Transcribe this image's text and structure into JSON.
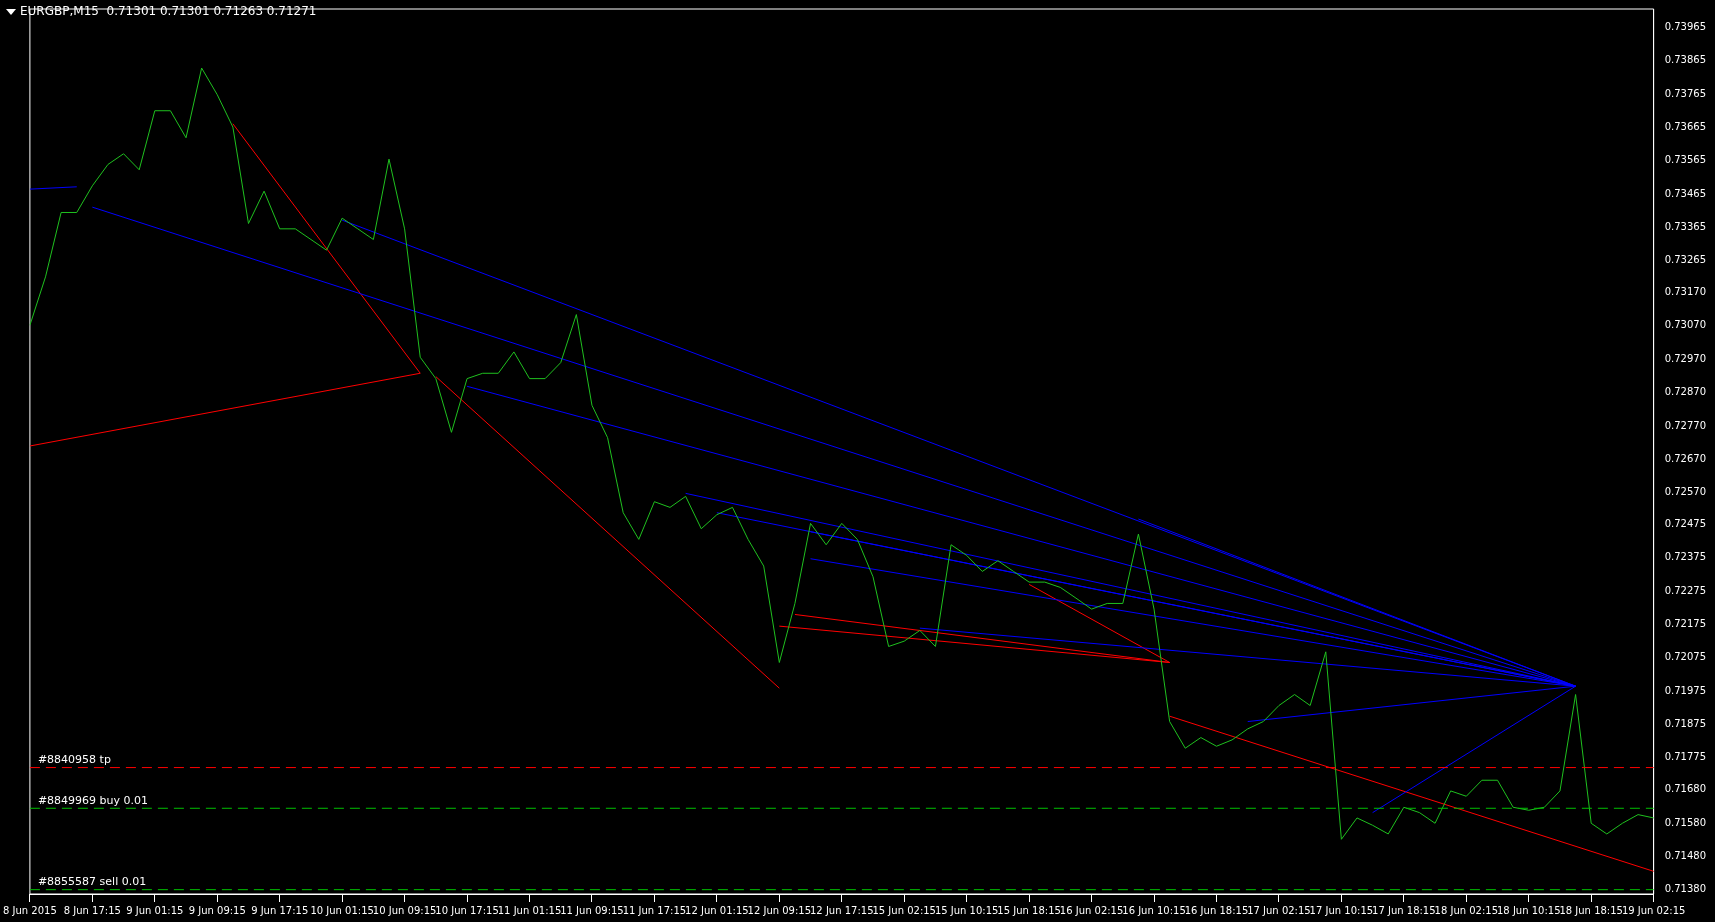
{
  "chart_data": {
    "type": "line",
    "title": "EURGBP,M15  0.71301 0.71301 0.71263 0.71271",
    "categories": [
      "8 Jun 2015",
      null,
      null,
      null,
      "8 Jun 17:15",
      null,
      null,
      null,
      "9 Jun 01:15",
      null,
      null,
      null,
      "9 Jun 09:15",
      null,
      null,
      null,
      "9 Jun 17:15",
      null,
      null,
      null,
      "10 Jun 01:15",
      null,
      null,
      null,
      "10 Jun 09:15",
      null,
      null,
      null,
      "10 Jun 17:15",
      null,
      null,
      null,
      "11 Jun 01:15",
      null,
      null,
      null,
      "11 Jun 09:15",
      null,
      null,
      null,
      "11 Jun 17:15",
      null,
      null,
      null,
      "12 Jun 01:15",
      null,
      null,
      null,
      "12 Jun 09:15",
      null,
      null,
      null,
      "12 Jun 17:15",
      null,
      null,
      null,
      "15 Jun 02:15",
      null,
      null,
      null,
      "15 Jun 10:15",
      null,
      null,
      null,
      "15 Jun 18:15",
      null,
      null,
      null,
      "16 Jun 02:15",
      null,
      null,
      null,
      "16 Jun 10:15",
      null,
      null,
      null,
      "16 Jun 18:15",
      null,
      null,
      null,
      "17 Jun 02:15",
      null,
      null,
      null,
      "17 Jun 10:15",
      null,
      null,
      null,
      "17 Jun 18:15",
      null,
      null,
      null,
      "18 Jun 02:15",
      null,
      null,
      null,
      "18 Jun 10:15",
      null,
      null,
      null,
      "18 Jun 18:15",
      null,
      null,
      null,
      "19 Jun 02:15"
    ],
    "ylim": [
      0.71367,
      0.7402
    ],
    "yticks": [
      0.73965,
      0.73865,
      0.73765,
      0.73665,
      0.73565,
      0.73465,
      0.73365,
      0.73265,
      {
        "value": 0.7317,
        "label": "0.73170"
      },
      {
        "value": 0.7307,
        "label": "0.73070"
      },
      {
        "value": 0.7297,
        "label": "0.72970"
      },
      {
        "value": 0.7287,
        "label": "0.72870"
      },
      {
        "value": 0.7277,
        "label": "0.72770"
      },
      {
        "value": 0.7267,
        "label": "0.72670"
      },
      {
        "value": 0.7257,
        "label": "0.72570"
      },
      0.72475,
      0.72375,
      0.72275,
      0.72175,
      0.72075,
      0.71975,
      0.71875,
      0.71775,
      {
        "value": 0.7168,
        "label": "0.71680"
      },
      {
        "value": 0.7158,
        "label": "0.71580"
      },
      {
        "value": 0.7148,
        "label": "0.71480"
      },
      {
        "value": 0.7138,
        "label": "0.71380"
      }
    ],
    "marker": "none",
    "line_style": "solid",
    "legend": false,
    "grid": false,
    "series": [
      {
        "color": "#1fc01f",
        "values": [
          0.73072,
          0.73217,
          0.7341,
          0.7341,
          0.7349,
          0.73554,
          0.73586,
          0.73538,
          0.73715,
          0.73715,
          0.73634,
          0.73843,
          0.73763,
          0.73666,
          0.73377,
          0.73474,
          0.73361,
          0.73361,
          0.73329,
          0.73297,
          0.73393,
          0.73361,
          0.73329,
          0.7357,
          0.73361,
          0.72976,
          0.72912,
          0.72751,
          0.72912,
          0.72928,
          0.72928,
          0.72992,
          0.72912,
          0.72912,
          0.7296,
          0.73104,
          0.72832,
          0.72735,
          0.7251,
          0.7243,
          0.72543,
          0.72526,
          0.72559,
          0.72462,
          0.72504,
          0.72526,
          0.7243,
          0.7235,
          0.72061,
          0.72238,
          0.72478,
          0.72414,
          0.72478,
          0.7243,
          0.72318,
          0.72109,
          0.72125,
          0.72157,
          0.72109,
          0.72414,
          0.72382,
          0.72334,
          0.72366,
          0.72334,
          0.72302,
          0.72302,
          0.72286,
          0.72254,
          0.72221,
          0.72238,
          0.72238,
          0.72446,
          0.72221,
          0.71884,
          0.71804,
          0.71836,
          0.7181,
          0.71829,
          0.71862,
          0.71884,
          0.71932,
          0.71965,
          0.71932,
          0.72093,
          0.71531,
          0.71595,
          0.71573,
          0.71547,
          0.71627,
          0.71611,
          0.71579,
          0.71676,
          0.7166,
          0.71708,
          0.71708,
          0.71627,
          0.71618,
          0.71627,
          0.71676,
          0.71965,
          0.71579,
          0.71547,
          0.71579,
          0.71605,
          0.71595
        ]
      },
      {
        "color": "#0000ff",
        "values": [
          0.7348,
          null,
          null,
          0.73487,
          null,
          null,
          null,
          null,
          null,
          null,
          null,
          null,
          null,
          null,
          null,
          null,
          null,
          null,
          null,
          null,
          null,
          null,
          null,
          null,
          null,
          null,
          null,
          null,
          null,
          null,
          null,
          null,
          null,
          null,
          null,
          null,
          null,
          null,
          null,
          null,
          null,
          null,
          null,
          null,
          null,
          null,
          null,
          null,
          null,
          null,
          null,
          null,
          null,
          null,
          null,
          null,
          null,
          null,
          null,
          null,
          null,
          null,
          null,
          null,
          null,
          null,
          null,
          null,
          null,
          null,
          null,
          null,
          null,
          null,
          null,
          null,
          null,
          null,
          null,
          null,
          null,
          null,
          null,
          null,
          null,
          null,
          null,
          null,
          null,
          null,
          null,
          null,
          null,
          null,
          null,
          null,
          null,
          null,
          null,
          null,
          null,
          null,
          null,
          null,
          null
        ]
      },
      {
        "color": "#0000ff",
        "values": [
          null,
          null,
          null,
          null,
          0.73426,
          null,
          null,
          null,
          null,
          null,
          null,
          null,
          null,
          null,
          null,
          null,
          null,
          null,
          null,
          null,
          null,
          null,
          null,
          null,
          null,
          null,
          null,
          null,
          null,
          null,
          null,
          null,
          null,
          null,
          null,
          null,
          null,
          null,
          null,
          null,
          null,
          null,
          null,
          null,
          null,
          null,
          null,
          null,
          null,
          null,
          null,
          null,
          null,
          null,
          null,
          null,
          null,
          null,
          null,
          null,
          null,
          null,
          null,
          null,
          null,
          null,
          null,
          null,
          null,
          null,
          null,
          null,
          null,
          null,
          null,
          null,
          null,
          null,
          null,
          null,
          null,
          null,
          null,
          null,
          null,
          null,
          null,
          null,
          null,
          null,
          null,
          null,
          null,
          null,
          null,
          null,
          null,
          null,
          null,
          0.7199,
          null,
          null,
          null,
          null,
          null
        ]
      },
      {
        "color": "#0000ff",
        "values": [
          null,
          null,
          null,
          null,
          null,
          null,
          null,
          null,
          null,
          null,
          null,
          null,
          null,
          null,
          null,
          null,
          null,
          null,
          null,
          null,
          0.73387,
          null,
          null,
          null,
          null,
          null,
          null,
          null,
          null,
          null,
          null,
          null,
          null,
          null,
          null,
          null,
          null,
          null,
          null,
          null,
          null,
          null,
          null,
          null,
          null,
          null,
          null,
          null,
          null,
          null,
          null,
          null,
          null,
          null,
          null,
          null,
          null,
          null,
          null,
          null,
          null,
          null,
          null,
          null,
          null,
          null,
          null,
          null,
          null,
          null,
          null,
          null,
          null,
          null,
          null,
          null,
          null,
          null,
          null,
          null,
          null,
          null,
          null,
          null,
          null,
          null,
          null,
          null,
          null,
          null,
          null,
          null,
          null,
          null,
          null,
          null,
          null,
          null,
          null,
          0.7199,
          null,
          null,
          null,
          null,
          null
        ]
      },
      {
        "color": "#0000ff",
        "values": [
          null,
          null,
          null,
          null,
          null,
          null,
          null,
          null,
          null,
          null,
          null,
          null,
          null,
          null,
          null,
          null,
          null,
          null,
          null,
          null,
          null,
          null,
          null,
          null,
          null,
          null,
          null,
          null,
          0.72889,
          null,
          null,
          null,
          null,
          null,
          null,
          null,
          null,
          null,
          null,
          null,
          null,
          null,
          null,
          null,
          null,
          null,
          null,
          null,
          null,
          null,
          null,
          null,
          null,
          null,
          null,
          null,
          null,
          null,
          null,
          null,
          null,
          null,
          null,
          null,
          null,
          null,
          null,
          null,
          null,
          null,
          null,
          null,
          null,
          null,
          null,
          null,
          null,
          null,
          null,
          null,
          null,
          null,
          null,
          null,
          null,
          null,
          null,
          null,
          null,
          null,
          null,
          null,
          null,
          null,
          null,
          null,
          null,
          null,
          null,
          0.7199,
          null,
          null,
          null,
          null,
          null
        ]
      },
      {
        "color": "#0000ff",
        "values": [
          null,
          null,
          null,
          null,
          null,
          null,
          null,
          null,
          null,
          null,
          null,
          null,
          null,
          null,
          null,
          null,
          null,
          null,
          null,
          null,
          null,
          null,
          null,
          null,
          null,
          null,
          null,
          null,
          null,
          null,
          null,
          null,
          null,
          null,
          null,
          null,
          null,
          null,
          null,
          null,
          null,
          null,
          0.72568,
          null,
          null,
          null,
          null,
          null,
          null,
          null,
          null,
          null,
          null,
          null,
          null,
          null,
          null,
          null,
          null,
          null,
          null,
          null,
          null,
          null,
          null,
          null,
          null,
          null,
          null,
          null,
          null,
          null,
          null,
          null,
          null,
          null,
          null,
          null,
          null,
          null,
          null,
          null,
          null,
          null,
          null,
          null,
          null,
          null,
          null,
          null,
          null,
          null,
          null,
          null,
          null,
          null,
          null,
          null,
          null,
          0.7199,
          null,
          null,
          null,
          null,
          null
        ]
      },
      {
        "color": "#0000ff",
        "values": [
          null,
          null,
          null,
          null,
          null,
          null,
          null,
          null,
          null,
          null,
          null,
          null,
          null,
          null,
          null,
          null,
          null,
          null,
          null,
          null,
          null,
          null,
          null,
          null,
          null,
          null,
          null,
          null,
          null,
          null,
          null,
          null,
          null,
          null,
          null,
          null,
          null,
          null,
          null,
          null,
          null,
          null,
          null,
          null,
          0.7251,
          null,
          null,
          null,
          null,
          null,
          null,
          null,
          null,
          null,
          null,
          null,
          null,
          null,
          null,
          null,
          null,
          null,
          null,
          null,
          null,
          null,
          null,
          null,
          null,
          null,
          null,
          null,
          null,
          null,
          null,
          null,
          null,
          null,
          null,
          null,
          null,
          null,
          null,
          null,
          null,
          null,
          null,
          null,
          null,
          null,
          null,
          null,
          null,
          null,
          null,
          null,
          null,
          null,
          null,
          0.7199,
          null,
          null,
          null,
          null,
          null
        ]
      },
      {
        "color": "#0000ff",
        "values": [
          null,
          null,
          null,
          null,
          null,
          null,
          null,
          null,
          null,
          null,
          null,
          null,
          null,
          null,
          null,
          null,
          null,
          null,
          null,
          null,
          null,
          null,
          null,
          null,
          null,
          null,
          null,
          null,
          null,
          null,
          null,
          null,
          null,
          null,
          null,
          null,
          null,
          null,
          null,
          null,
          null,
          null,
          null,
          null,
          null,
          null,
          null,
          null,
          null,
          null,
          0.72453,
          null,
          null,
          null,
          null,
          null,
          null,
          null,
          null,
          null,
          null,
          null,
          null,
          null,
          null,
          null,
          null,
          null,
          null,
          null,
          null,
          null,
          null,
          null,
          null,
          null,
          null,
          null,
          null,
          null,
          null,
          null,
          null,
          null,
          null,
          null,
          null,
          null,
          null,
          null,
          null,
          null,
          null,
          null,
          null,
          null,
          null,
          null,
          null,
          0.7199,
          null,
          null,
          null,
          null,
          null
        ]
      },
      {
        "color": "#0000ff",
        "values": [
          null,
          null,
          null,
          null,
          null,
          null,
          null,
          null,
          null,
          null,
          null,
          null,
          null,
          null,
          null,
          null,
          null,
          null,
          null,
          null,
          null,
          null,
          null,
          null,
          null,
          null,
          null,
          null,
          null,
          null,
          null,
          null,
          null,
          null,
          null,
          null,
          null,
          null,
          null,
          null,
          null,
          null,
          null,
          null,
          null,
          null,
          null,
          null,
          null,
          null,
          0.72372,
          null,
          null,
          null,
          null,
          null,
          null,
          null,
          null,
          null,
          null,
          null,
          null,
          null,
          null,
          null,
          null,
          null,
          null,
          null,
          null,
          null,
          null,
          null,
          null,
          null,
          null,
          null,
          null,
          null,
          null,
          null,
          null,
          null,
          null,
          null,
          null,
          null,
          null,
          null,
          null,
          null,
          null,
          null,
          null,
          null,
          null,
          null,
          null,
          0.7199,
          null,
          null,
          null,
          null,
          null
        ]
      },
      {
        "color": "#0000ff",
        "values": [
          null,
          null,
          null,
          null,
          null,
          null,
          null,
          null,
          null,
          null,
          null,
          null,
          null,
          null,
          null,
          null,
          null,
          null,
          null,
          null,
          null,
          null,
          null,
          null,
          null,
          null,
          null,
          null,
          null,
          null,
          null,
          null,
          null,
          null,
          null,
          null,
          null,
          null,
          null,
          null,
          null,
          null,
          null,
          null,
          null,
          null,
          null,
          null,
          null,
          null,
          null,
          null,
          null,
          null,
          null,
          null,
          null,
          0.72164,
          null,
          null,
          null,
          null,
          null,
          null,
          null,
          null,
          null,
          null,
          null,
          null,
          null,
          null,
          null,
          null,
          null,
          null,
          null,
          null,
          null,
          null,
          null,
          null,
          null,
          null,
          null,
          null,
          null,
          null,
          null,
          null,
          null,
          null,
          null,
          null,
          null,
          null,
          null,
          null,
          null,
          0.7199,
          null,
          null,
          null,
          null,
          null
        ]
      },
      {
        "color": "#0000ff",
        "values": [
          null,
          null,
          null,
          null,
          null,
          null,
          null,
          null,
          null,
          null,
          null,
          null,
          null,
          null,
          null,
          null,
          null,
          null,
          null,
          null,
          null,
          null,
          null,
          null,
          null,
          null,
          null,
          null,
          null,
          null,
          null,
          null,
          null,
          null,
          null,
          null,
          null,
          null,
          null,
          null,
          null,
          null,
          null,
          null,
          null,
          null,
          null,
          null,
          null,
          null,
          null,
          null,
          null,
          null,
          null,
          null,
          null,
          null,
          null,
          null,
          null,
          null,
          null,
          null,
          null,
          null,
          null,
          null,
          null,
          null,
          null,
          0.72491,
          null,
          null,
          null,
          null,
          null,
          null,
          null,
          null,
          null,
          null,
          null,
          null,
          null,
          null,
          null,
          null,
          null,
          null,
          null,
          null,
          null,
          null,
          null,
          null,
          null,
          null,
          null,
          0.7199,
          null,
          null,
          null,
          null,
          null
        ]
      },
      {
        "color": "#0000ff",
        "values": [
          null,
          null,
          null,
          null,
          null,
          null,
          null,
          null,
          null,
          null,
          null,
          null,
          null,
          null,
          null,
          null,
          null,
          null,
          null,
          null,
          null,
          null,
          null,
          null,
          null,
          null,
          null,
          null,
          null,
          null,
          null,
          null,
          null,
          null,
          null,
          null,
          null,
          null,
          null,
          null,
          null,
          null,
          null,
          null,
          null,
          null,
          null,
          null,
          null,
          null,
          null,
          null,
          null,
          null,
          null,
          null,
          null,
          null,
          null,
          null,
          null,
          null,
          null,
          null,
          null,
          null,
          null,
          null,
          null,
          null,
          null,
          null,
          null,
          null,
          null,
          null,
          null,
          null,
          0.71884,
          null,
          null,
          null,
          null,
          null,
          null,
          null,
          null,
          null,
          null,
          null,
          null,
          null,
          null,
          null,
          null,
          null,
          null,
          null,
          null,
          0.7199,
          null,
          null,
          null,
          null,
          null
        ]
      },
      {
        "color": "#0000ff",
        "values": [
          null,
          null,
          null,
          null,
          null,
          null,
          null,
          null,
          null,
          null,
          null,
          null,
          null,
          null,
          null,
          null,
          null,
          null,
          null,
          null,
          null,
          null,
          null,
          null,
          null,
          null,
          null,
          null,
          null,
          null,
          null,
          null,
          null,
          null,
          null,
          null,
          null,
          null,
          null,
          null,
          null,
          null,
          null,
          null,
          null,
          null,
          null,
          null,
          null,
          null,
          null,
          null,
          null,
          null,
          null,
          null,
          null,
          null,
          null,
          null,
          null,
          null,
          null,
          null,
          null,
          null,
          null,
          null,
          null,
          null,
          null,
          null,
          null,
          null,
          null,
          null,
          null,
          null,
          null,
          null,
          null,
          null,
          null,
          null,
          null,
          null,
          0.71611,
          null,
          null,
          null,
          null,
          null,
          null,
          null,
          null,
          null,
          null,
          null,
          null,
          0.7199,
          null,
          null,
          null,
          null,
          null
        ]
      },
      {
        "color": "#ff0000",
        "values": [
          null,
          null,
          null,
          null,
          null,
          null,
          null,
          null,
          null,
          null,
          null,
          null,
          null,
          0.73676,
          null,
          null,
          null,
          null,
          null,
          null,
          null,
          null,
          null,
          null,
          null,
          0.72928,
          null,
          null,
          null,
          null,
          null,
          null,
          null,
          null,
          null,
          null,
          null,
          null,
          null,
          null,
          null,
          null,
          null,
          null,
          null,
          null,
          null,
          null,
          null,
          null,
          null,
          null,
          null,
          null,
          null,
          null,
          null,
          null,
          null,
          null,
          null,
          null,
          null,
          null,
          null,
          null,
          null,
          null,
          null,
          null,
          null,
          null,
          null,
          null,
          null,
          null,
          null,
          null,
          null,
          null,
          null,
          null,
          null,
          null,
          null,
          null,
          null,
          null,
          null,
          null,
          null,
          null,
          null,
          null,
          null,
          null,
          null,
          null,
          null,
          null,
          null,
          null,
          null,
          null,
          null
        ]
      },
      {
        "color": "#ff0000",
        "values": [
          0.7271,
          null,
          null,
          null,
          null,
          null,
          null,
          null,
          null,
          null,
          null,
          null,
          null,
          null,
          null,
          null,
          null,
          null,
          null,
          null,
          null,
          null,
          null,
          null,
          null,
          0.72928,
          null,
          null,
          null,
          null,
          null,
          null,
          null,
          null,
          null,
          null,
          null,
          null,
          null,
          null,
          null,
          null,
          null,
          null,
          null,
          null,
          null,
          null,
          null,
          null,
          null,
          null,
          null,
          null,
          null,
          null,
          null,
          null,
          null,
          null,
          null,
          null,
          null,
          null,
          null,
          null,
          null,
          null,
          null,
          null,
          null,
          null,
          null,
          null,
          null,
          null,
          null,
          null,
          null,
          null,
          null,
          null,
          null,
          null,
          null,
          null,
          null,
          null,
          null,
          null,
          null,
          null,
          null,
          null,
          null,
          null,
          null,
          null,
          null,
          null,
          null,
          null,
          null,
          null,
          null
        ]
      },
      {
        "color": "#ff0000",
        "values": [
          null,
          null,
          null,
          null,
          null,
          null,
          null,
          null,
          null,
          null,
          null,
          null,
          null,
          null,
          null,
          null,
          null,
          null,
          null,
          null,
          null,
          null,
          null,
          null,
          null,
          null,
          0.72918,
          null,
          null,
          null,
          null,
          null,
          null,
          null,
          null,
          null,
          null,
          null,
          null,
          null,
          null,
          null,
          null,
          null,
          null,
          null,
          null,
          null,
          0.71984,
          null,
          null,
          null,
          null,
          null,
          null,
          null,
          null,
          null,
          null,
          null,
          null,
          null,
          null,
          null,
          null,
          null,
          null,
          null,
          null,
          null,
          null,
          null,
          null,
          null,
          null,
          null,
          null,
          null,
          null,
          null,
          null,
          null,
          null,
          null,
          null,
          null,
          null,
          null,
          null,
          null,
          null,
          null,
          null,
          null,
          null,
          null,
          null,
          null,
          null,
          null,
          null,
          null,
          null,
          null,
          null
        ]
      },
      {
        "color": "#ff0000",
        "values": [
          null,
          null,
          null,
          null,
          null,
          null,
          null,
          null,
          null,
          null,
          null,
          null,
          null,
          null,
          null,
          null,
          null,
          null,
          null,
          null,
          null,
          null,
          null,
          null,
          null,
          null,
          null,
          null,
          null,
          null,
          null,
          null,
          null,
          null,
          null,
          null,
          null,
          null,
          null,
          null,
          null,
          null,
          null,
          null,
          null,
          null,
          null,
          null,
          null,
          0.72205,
          null,
          null,
          null,
          null,
          null,
          null,
          null,
          null,
          null,
          null,
          null,
          null,
          null,
          null,
          null,
          null,
          null,
          null,
          null,
          null,
          null,
          null,
          null,
          0.72061,
          null,
          null,
          null,
          null,
          null,
          null,
          null,
          null,
          null,
          null,
          null,
          null,
          null,
          null,
          null,
          null,
          null,
          null,
          null,
          null,
          null,
          null,
          null,
          null,
          null,
          null,
          null,
          null,
          null,
          null,
          null
        ]
      },
      {
        "color": "#ff0000",
        "values": [
          null,
          null,
          null,
          null,
          null,
          null,
          null,
          null,
          null,
          null,
          null,
          null,
          null,
          null,
          null,
          null,
          null,
          null,
          null,
          null,
          null,
          null,
          null,
          null,
          null,
          null,
          null,
          null,
          null,
          null,
          null,
          null,
          null,
          null,
          null,
          null,
          null,
          null,
          null,
          null,
          null,
          null,
          null,
          null,
          null,
          null,
          null,
          null,
          0.7217,
          null,
          null,
          null,
          null,
          null,
          null,
          null,
          null,
          null,
          null,
          null,
          null,
          null,
          null,
          null,
          null,
          null,
          null,
          null,
          null,
          null,
          null,
          null,
          null,
          0.72061,
          null,
          null,
          null,
          null,
          null,
          null,
          null,
          null,
          null,
          null,
          null,
          null,
          null,
          null,
          null,
          null,
          null,
          null,
          null,
          null,
          null,
          null,
          null,
          null,
          null,
          null,
          null,
          null,
          null,
          null,
          null
        ]
      },
      {
        "color": "#ff0000",
        "values": [
          null,
          null,
          null,
          null,
          null,
          null,
          null,
          null,
          null,
          null,
          null,
          null,
          null,
          null,
          null,
          null,
          null,
          null,
          null,
          null,
          null,
          null,
          null,
          null,
          null,
          null,
          null,
          null,
          null,
          null,
          null,
          null,
          null,
          null,
          null,
          null,
          null,
          null,
          null,
          null,
          null,
          null,
          null,
          null,
          null,
          null,
          null,
          null,
          null,
          null,
          null,
          null,
          null,
          null,
          null,
          null,
          null,
          null,
          null,
          null,
          null,
          null,
          null,
          null,
          0.72295,
          null,
          null,
          null,
          null,
          null,
          null,
          null,
          null,
          0.72061,
          null,
          null,
          null,
          null,
          null,
          null,
          null,
          null,
          null,
          null,
          null,
          null,
          null,
          null,
          null,
          null,
          null,
          null,
          null,
          null,
          null,
          null,
          null,
          null,
          null,
          null,
          null,
          null,
          null,
          null,
          null
        ]
      },
      {
        "color": "#ff0000",
        "values": [
          null,
          null,
          null,
          null,
          null,
          null,
          null,
          null,
          null,
          null,
          null,
          null,
          null,
          null,
          null,
          null,
          null,
          null,
          null,
          null,
          null,
          null,
          null,
          null,
          null,
          null,
          null,
          null,
          null,
          null,
          null,
          null,
          null,
          null,
          null,
          null,
          null,
          null,
          null,
          null,
          null,
          null,
          null,
          null,
          null,
          null,
          null,
          null,
          null,
          null,
          null,
          null,
          null,
          null,
          null,
          null,
          null,
          null,
          null,
          null,
          null,
          null,
          null,
          null,
          null,
          null,
          null,
          null,
          null,
          null,
          null,
          null,
          null,
          0.719,
          null,
          null,
          null,
          null,
          null,
          null,
          null,
          null,
          null,
          null,
          null,
          null,
          null,
          null,
          null,
          null,
          null,
          null,
          null,
          null,
          null,
          null,
          null,
          null,
          null,
          null,
          null,
          null,
          null,
          null,
          0.71435
        ]
      }
    ],
    "ref_lines": [
      {
        "axis": "y",
        "value": 0.71746,
        "label": "#8840958 tp",
        "color": "#ff0000",
        "line_style": "dashed"
      },
      {
        "axis": "y",
        "value": 0.71624,
        "label": "#8849969 buy 0.01",
        "color": "#00c000",
        "line_style": "dashed"
      },
      {
        "axis": "y",
        "value": 0.7138,
        "label": "#8855587 sell 0.01",
        "color": "#00c000",
        "line_style": "dashed"
      }
    ]
  }
}
